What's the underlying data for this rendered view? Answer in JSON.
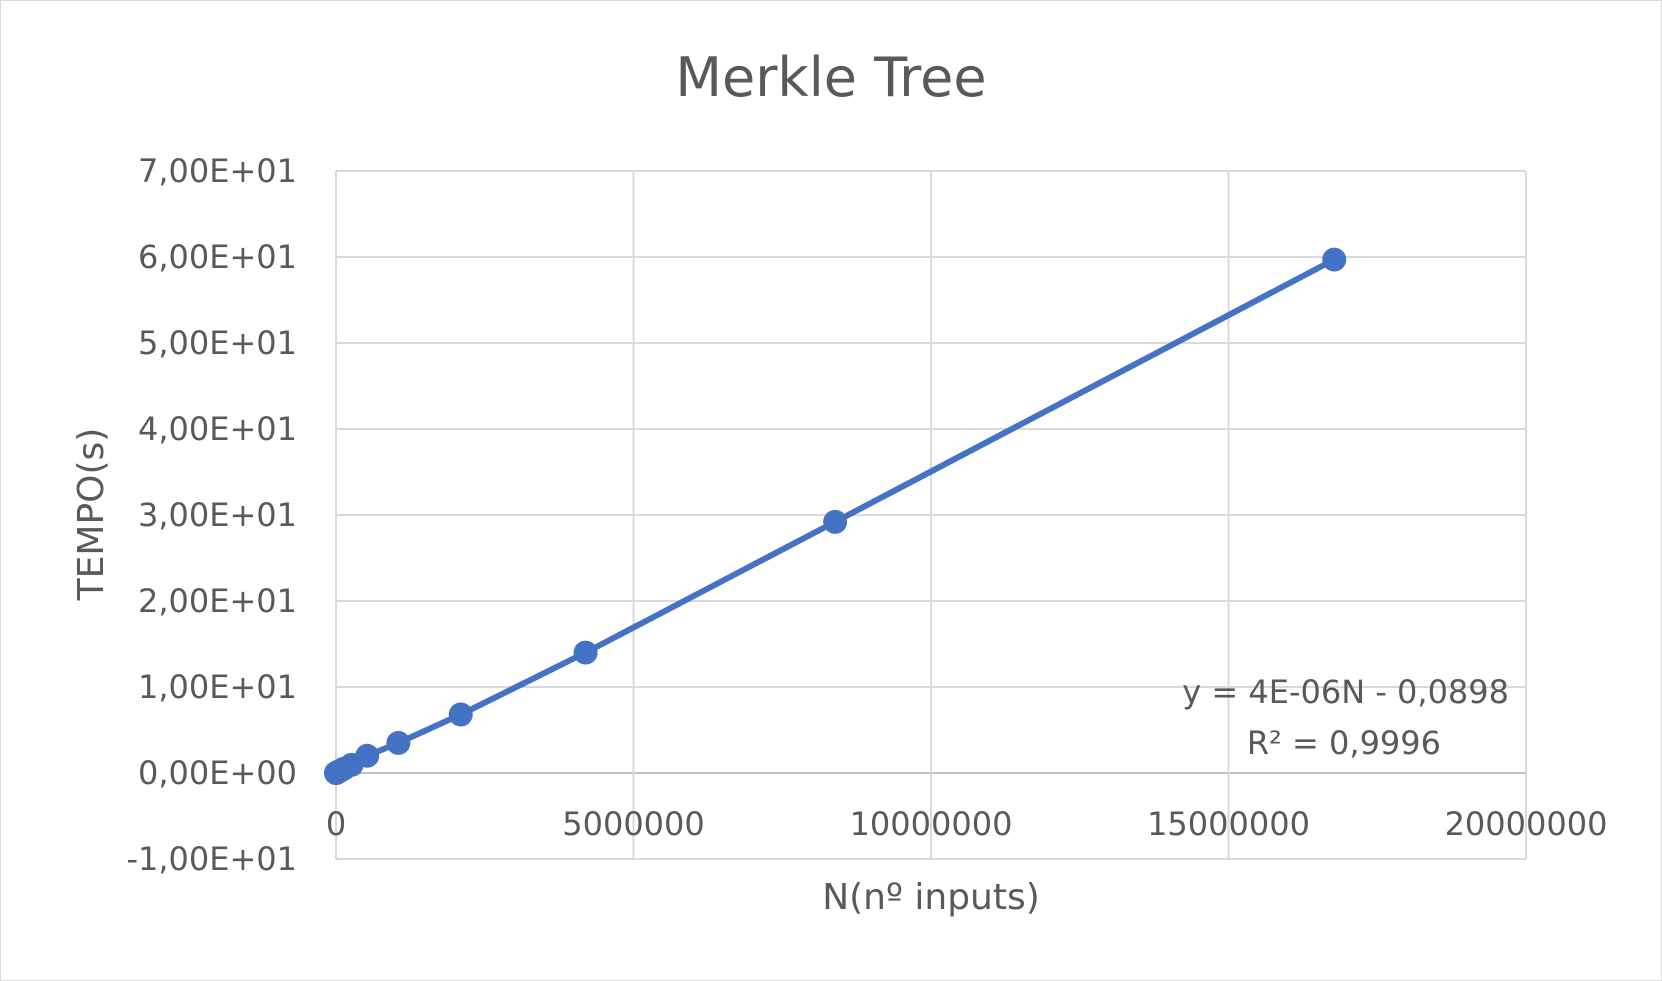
{
  "chart_data": {
    "type": "scatter",
    "title": "Merkle Tree",
    "xlabel": "N(nº inputs)",
    "ylabel": "TEMPO(s)",
    "xlim": [
      0,
      20000000
    ],
    "ylim": [
      -10,
      70
    ],
    "x_ticks": [
      {
        "value": 0,
        "label": "0"
      },
      {
        "value": 5000000,
        "label": "5000000"
      },
      {
        "value": 10000000,
        "label": "10000000"
      },
      {
        "value": 15000000,
        "label": "15000000"
      },
      {
        "value": 20000000,
        "label": "20000000"
      }
    ],
    "y_ticks": [
      {
        "value": -10,
        "label": "-1,00E+01"
      },
      {
        "value": 0,
        "label": "0,00E+00"
      },
      {
        "value": 10,
        "label": "1,00E+01"
      },
      {
        "value": 20,
        "label": "2,00E+01"
      },
      {
        "value": 30,
        "label": "3,00E+01"
      },
      {
        "value": 40,
        "label": "4,00E+01"
      },
      {
        "value": 50,
        "label": "5,00E+01"
      },
      {
        "value": 60,
        "label": "6,00E+01"
      },
      {
        "value": 70,
        "label": "7,00E+01"
      }
    ],
    "grid": true,
    "series": [
      {
        "color": "#4472c4",
        "points": [
          {
            "x": 1024,
            "y": 0.0
          },
          {
            "x": 2048,
            "y": 0.0
          },
          {
            "x": 4096,
            "y": 0.01
          },
          {
            "x": 8192,
            "y": 0.03
          },
          {
            "x": 16384,
            "y": 0.06
          },
          {
            "x": 32768,
            "y": 0.12
          },
          {
            "x": 65536,
            "y": 0.25
          },
          {
            "x": 131072,
            "y": 0.5
          },
          {
            "x": 262144,
            "y": 0.95
          },
          {
            "x": 524288,
            "y": 2.0
          },
          {
            "x": 1048576,
            "y": 3.5
          },
          {
            "x": 2097152,
            "y": 6.8
          },
          {
            "x": 4194304,
            "y": 14.0
          },
          {
            "x": 8388608,
            "y": 29.2
          },
          {
            "x": 16777216,
            "y": 59.7
          }
        ]
      }
    ],
    "trendline": {
      "equation": "y = 4E-06N - 0,0898",
      "r_squared": "R² = 0,9996"
    }
  }
}
